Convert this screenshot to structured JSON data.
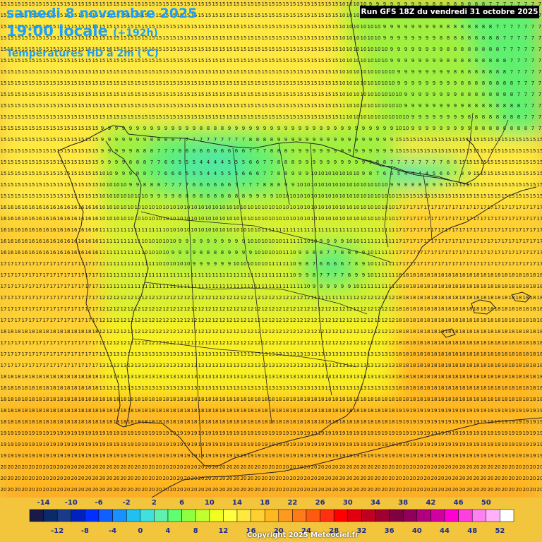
{
  "header": {
    "date": "samedi 8 novembre 2025",
    "time": "19:00 locale",
    "lead": "(+192h)",
    "parameter": "Températures HD à 2m (°C)"
  },
  "run_info": "Run GFS 18Z du vendredi 31 octobre 2025",
  "copyright": "Copyright 2025 Meteociel.fr",
  "legend": {
    "top_labels": [
      "-14",
      "-10",
      "-6",
      "-2",
      "2",
      "6",
      "10",
      "14",
      "18",
      "22",
      "26",
      "30",
      "34",
      "38",
      "42",
      "46",
      "50"
    ],
    "bottom_labels": [
      "-12",
      "-8",
      "-4",
      "0",
      "4",
      "8",
      "12",
      "16",
      "20",
      "24",
      "28",
      "32",
      "36",
      "40",
      "44",
      "48",
      "52"
    ],
    "colors": [
      "#1a1a4a",
      "#0a2a6a",
      "#1a3a8a",
      "#0020c0",
      "#0030ff",
      "#1060ff",
      "#1a90ff",
      "#20c0f0",
      "#40e0e0",
      "#60f0b0",
      "#60ff70",
      "#90ff40",
      "#c0ff30",
      "#f0ff20",
      "#ffff40",
      "#ffe840",
      "#ffd030",
      "#ffb820",
      "#ff9a20",
      "#ff7a18",
      "#ff5a10",
      "#ff3010",
      "#ff0000",
      "#e00010",
      "#c00020",
      "#a00030",
      "#800040",
      "#90005a",
      "#b00080",
      "#d000a0",
      "#ff00d0",
      "#ff40e0",
      "#ff80f0",
      "#ffb0f8",
      "#ffffff"
    ]
  },
  "map": {
    "region": "Péninsule Ibérique",
    "colormap": "temperature",
    "value_range": [
      0,
      22
    ]
  }
}
